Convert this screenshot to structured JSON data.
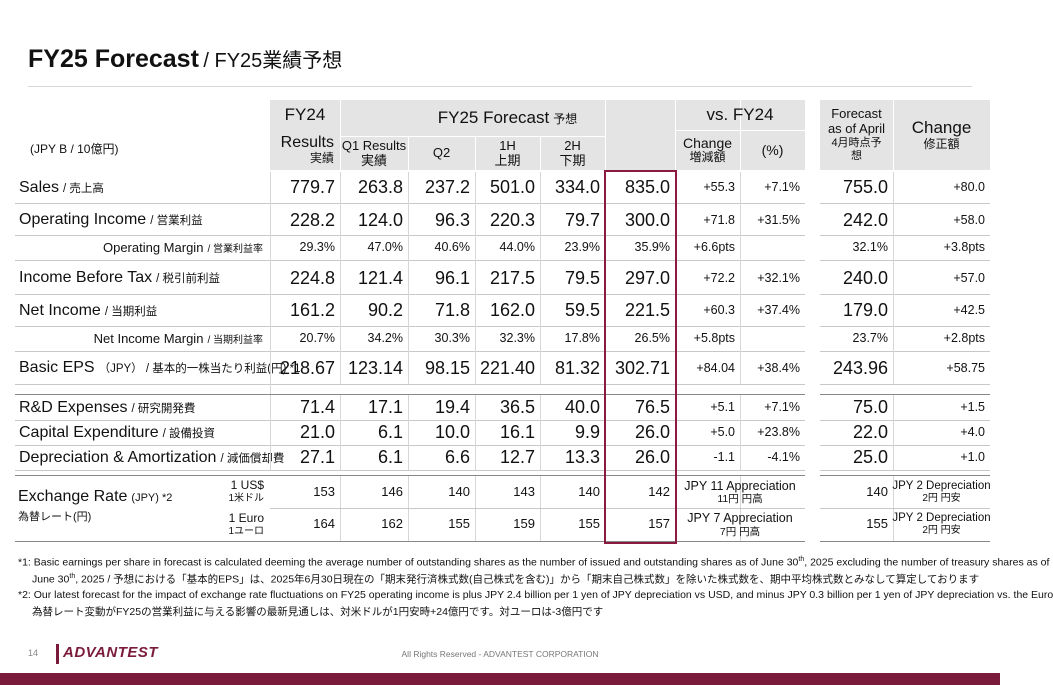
{
  "header": {
    "title": "FY25 Forecast",
    "title_jp": "/ FY25業績予想"
  },
  "table": {
    "unit": "(JPY B / 10億円)",
    "group_headers": {
      "fy24": "FY24",
      "fy25": "FY25 Forecast",
      "fy25_jp": "予想",
      "vs": "vs. FY24"
    },
    "columns": [
      {
        "label": "Results",
        "label_jp": "実績"
      },
      {
        "label": "Q1 Results",
        "label_jp": "実績"
      },
      {
        "label": "Q2"
      },
      {
        "label": "1H",
        "label_jp": "上期"
      },
      {
        "label": "2H",
        "label_jp": "下期"
      },
      null,
      {
        "label": "Change",
        "label_jp": "増減額"
      },
      {
        "label": "(%)"
      },
      {
        "label": "Forecast as of April",
        "label_jp": "4月時点予想"
      },
      {
        "label": "Change",
        "label_jp": "修正額"
      }
    ],
    "rows": [
      {
        "label": "Sales",
        "label_jp": "/ 売上高",
        "values": [
          "779.7",
          "263.8",
          "237.2",
          "501.0",
          "334.0",
          "835.0",
          "+55.3",
          "+7.1%",
          "755.0",
          "+80.0"
        ]
      },
      {
        "label": "Operating Income",
        "label_jp": "/ 営業利益",
        "values": [
          "228.2",
          "124.0",
          "96.3",
          "220.3",
          "79.7",
          "300.0",
          "+71.8",
          "+31.5%",
          "242.0",
          "+58.0"
        ]
      },
      {
        "label": "Operating Margin",
        "label_jp": "/ 営業利益率",
        "values": [
          "29.3%",
          "47.0%",
          "40.6%",
          "44.0%",
          "23.9%",
          "35.9%",
          "+6.6pts",
          null,
          "32.1%",
          "+3.8pts"
        ]
      },
      {
        "label": "Income Before Tax",
        "label_jp": "/ 税引前利益",
        "values": [
          "224.8",
          "121.4",
          "96.1",
          "217.5",
          "79.5",
          "297.0",
          "+72.2",
          "+32.1%",
          "240.0",
          "+57.0"
        ]
      },
      {
        "label": "Net Income",
        "label_jp": "/ 当期利益",
        "values": [
          "161.2",
          "90.2",
          "71.8",
          "162.0",
          "59.5",
          "221.5",
          "+60.3",
          "+37.4%",
          "179.0",
          "+42.5"
        ]
      },
      {
        "label": "Net Income Margin",
        "label_jp": "/ 当期利益率",
        "values": [
          "20.7%",
          "34.2%",
          "30.3%",
          "32.3%",
          "17.8%",
          "26.5%",
          "+5.8pts",
          null,
          "23.7%",
          "+2.8pts"
        ]
      },
      {
        "label": "Basic EPS",
        "label_jp": "（JPY） / 基本的一株当たり利益(円) *1",
        "values": [
          "218.67",
          "123.14",
          "98.15",
          "221.40",
          "81.32",
          "302.71",
          "+84.04",
          "+38.4%",
          "243.96",
          "+58.75"
        ]
      },
      {
        "label": "R&D Expenses",
        "label_jp": "/ 研究開発費",
        "values": [
          "71.4",
          "17.1",
          "19.4",
          "36.5",
          "40.0",
          "76.5",
          "+5.1",
          "+7.1%",
          "75.0",
          "+1.5"
        ]
      },
      {
        "label": "Capital Expenditure",
        "label_jp": "/ 設備投資",
        "values": [
          "21.0",
          "6.1",
          "10.0",
          "16.1",
          "9.9",
          "26.0",
          "+5.0",
          "+23.8%",
          "22.0",
          "+4.0"
        ]
      },
      {
        "label": "Depreciation & Amortization",
        "label_jp": "/ 減価償却費",
        "values": [
          "27.1",
          "6.1",
          "6.6",
          "12.7",
          "13.3",
          "26.0",
          "-1.1",
          "-4.1%",
          "25.0",
          "+1.0"
        ]
      }
    ],
    "exchange": {
      "label": "Exchange Rate",
      "label_note": "(JPY) *2",
      "label_jp": "為替レート(円)",
      "rows": [
        {
          "label": "1 US$",
          "label_jp": "1米ドル",
          "values": [
            "153",
            "146",
            "140",
            "143",
            "140",
            "142"
          ],
          "change": "JPY 11 Appreciation",
          "change_jp": "11円 円高",
          "april": "140",
          "revision": "JPY 2 Depreciation",
          "revision_jp": "2円 円安"
        },
        {
          "label": "1 Euro",
          "label_jp": "1ユーロ",
          "values": [
            "164",
            "162",
            "155",
            "159",
            "155",
            "157"
          ],
          "change": "JPY 7 Appreciation",
          "change_jp": "7円 円高",
          "april": "155",
          "revision": "JPY 2 Depreciation",
          "revision_jp": "2円 円安"
        }
      ]
    }
  },
  "footnotes": [
    [
      "*1: Basic earnings per share in forecast is calculated deeming the average number of outstanding shares as the number of issued and outstanding shares as of June 30",
      "th",
      ", 2025 excluding the number of treasury shares as of"
    ],
    [
      "June 30",
      "th",
      ", 2025 / 予想における「基本的EPS」は、2025年6月30日現在の「期末発行済株式数(自己株式を含む)」から「期末自己株式数」を除いた株式数を、期中平均株式数とみなして算定しております"
    ],
    [
      "*2: Our latest forecast for the impact of exchange rate fluctuations on FY25 operating income is plus JPY 2.4 billion per 1 yen of JPY depreciation vs USD, and minus JPY 0.3 billion per 1 yen of JPY depreciation vs. the Euro"
    ],
    [
      "為替レート変動がFY25の営業利益に与える影響の最新見通しは、対米ドルが1円安時+24億円です。対ユーロは-3億円です"
    ]
  ],
  "footer": {
    "page": "14",
    "logo": "ADVANTEST",
    "copyright": "All Rights Reserved - ADVANTEST CORPORATION"
  }
}
